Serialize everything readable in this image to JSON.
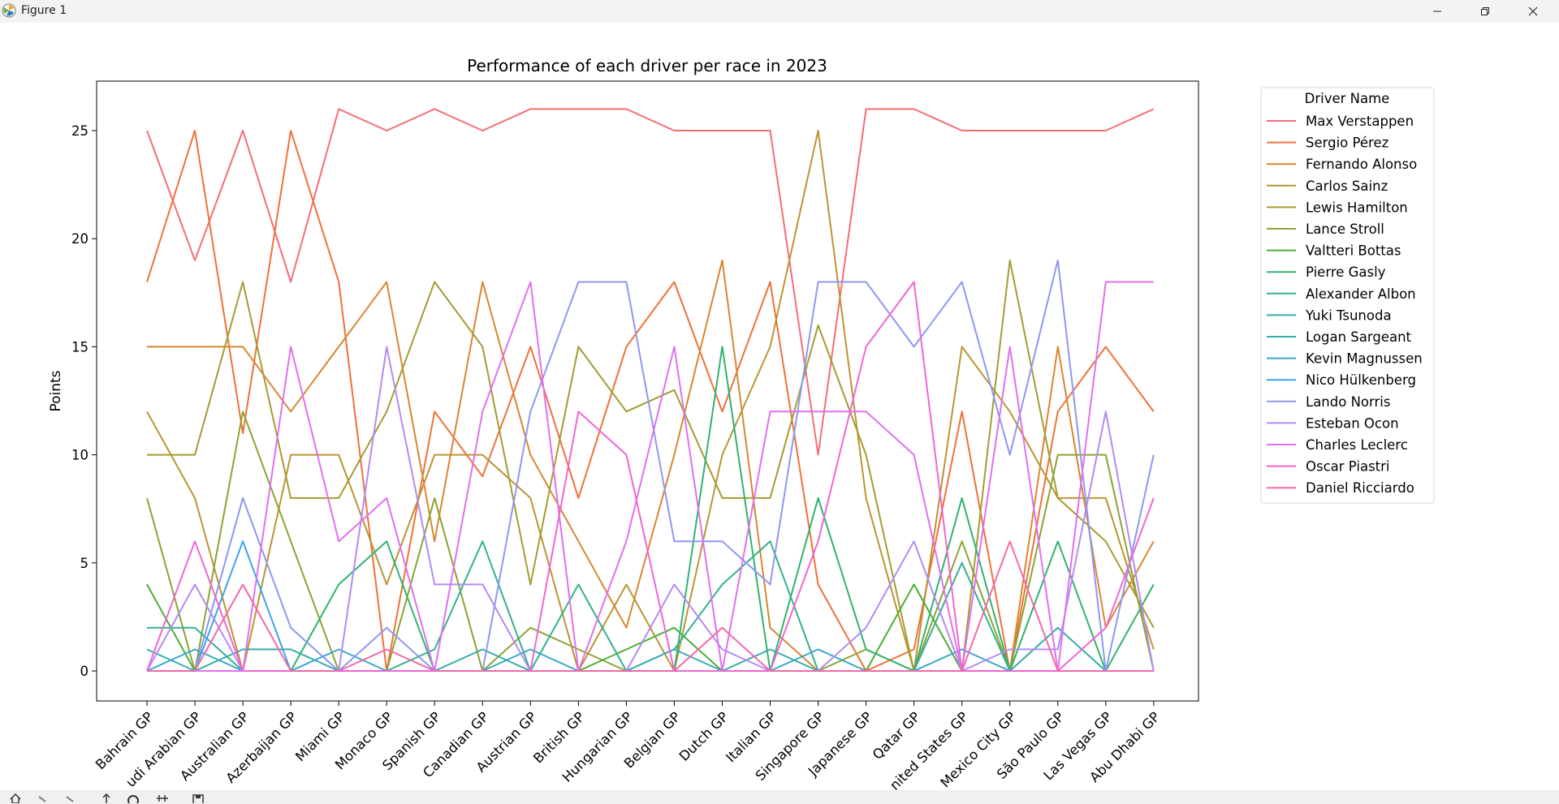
{
  "window": {
    "title": "Figure 1"
  },
  "toolbar": {
    "icons": [
      "home-icon",
      "back-icon",
      "forward-icon",
      "pan-icon",
      "zoom-icon",
      "configure-icon",
      "save-icon"
    ]
  },
  "chart_data": {
    "type": "line",
    "title": "Performance of each driver per race in 2023",
    "xlabel": "",
    "ylabel": "Points",
    "ylim": [
      -1.3,
      27.4
    ],
    "yticks": [
      0,
      5,
      10,
      15,
      20,
      25
    ],
    "grid": false,
    "legend": {
      "title": "Driver Name",
      "placement": "right-outside"
    },
    "categories": [
      "Bahrain GP",
      "Saudi Arabian GP",
      "Australian GP",
      "Azerbaijan GP",
      "Miami GP",
      "Monaco GP",
      "Spanish GP",
      "Canadian GP",
      "Austrian GP",
      "British GP",
      "Hungarian GP",
      "Belgian GP",
      "Dutch GP",
      "Italian GP",
      "Singapore GP",
      "Japanese GP",
      "Qatar GP",
      "United States GP",
      "Mexico City GP",
      "São Paulo GP",
      "Las Vegas GP",
      "Abu Dhabi GP"
    ],
    "tick_labels": [
      "Bahrain GP",
      "udi Arabian GP",
      "Australian GP",
      "Azerbaijan GP",
      "Miami GP",
      "Monaco GP",
      "Spanish GP",
      "Canadian GP",
      "Austrian GP",
      "British GP",
      "Hungarian GP",
      "Belgian GP",
      "Dutch GP",
      "Italian GP",
      "Singapore GP",
      "Japanese GP",
      "Qatar GP",
      "nited States GP",
      "Mexico City GP",
      "São Paulo GP",
      "Las Vegas GP",
      "Abu Dhabi GP"
    ],
    "series": [
      {
        "name": "Max Verstappen",
        "color": "#f66b77",
        "values": [
          25,
          19,
          25,
          18,
          26,
          25,
          26,
          25,
          26,
          26,
          26,
          25,
          25,
          25,
          10,
          26,
          26,
          25,
          25,
          25,
          25,
          26
        ]
      },
      {
        "name": "Sergio Pérez",
        "color": "#f07039",
        "values": [
          18,
          25,
          11,
          25,
          18,
          0,
          12,
          9,
          15,
          8,
          15,
          18,
          12,
          18,
          4,
          0,
          1,
          12,
          0,
          12,
          15,
          12
        ]
      },
      {
        "name": "Fernando Alonso",
        "color": "#d98631",
        "values": [
          15,
          15,
          15,
          12,
          15,
          18,
          6,
          18,
          10,
          6,
          2,
          10,
          19,
          2,
          0,
          0,
          0,
          0,
          0,
          15,
          2,
          6
        ]
      },
      {
        "name": "Carlos Sainz",
        "color": "#bc9433",
        "values": [
          12,
          8,
          0,
          10,
          10,
          4,
          10,
          10,
          8,
          0,
          4,
          0,
          10,
          15,
          25,
          8,
          0,
          15,
          12,
          8,
          8,
          1
        ]
      },
      {
        "name": "Lewis Hamilton",
        "color": "#a49c33",
        "values": [
          10,
          10,
          18,
          8,
          8,
          12,
          18,
          15,
          4,
          15,
          12,
          13,
          8,
          8,
          16,
          10,
          0,
          0,
          19,
          8,
          6,
          2
        ]
      },
      {
        "name": "Lance Stroll",
        "color": "#8ba433",
        "values": [
          8,
          0,
          12,
          6,
          0,
          0,
          8,
          0,
          2,
          1,
          0,
          0,
          0,
          0,
          0,
          1,
          0,
          6,
          0,
          10,
          10,
          0
        ]
      },
      {
        "name": "Valtteri Bottas",
        "color": "#4cae36",
        "values": [
          4,
          0,
          0,
          0,
          0,
          0,
          0,
          0,
          0,
          0,
          1,
          2,
          0,
          0,
          0,
          0,
          4,
          0,
          0,
          0,
          0,
          0
        ]
      },
      {
        "name": "Pierre Gasly",
        "color": "#31b26e",
        "values": [
          0,
          0,
          0,
          0,
          4,
          6,
          0,
          0,
          0,
          0,
          0,
          0,
          15,
          0,
          8,
          1,
          0,
          8,
          0,
          6,
          0,
          4
        ]
      },
      {
        "name": "Alexander Albon",
        "color": "#33b091",
        "values": [
          2,
          2,
          0,
          0,
          0,
          0,
          1,
          6,
          0,
          4,
          0,
          1,
          4,
          6,
          0,
          0,
          0,
          5,
          0,
          0,
          0,
          0
        ]
      },
      {
        "name": "Yuki Tsunoda",
        "color": "#35aca7",
        "values": [
          0,
          0,
          1,
          1,
          0,
          0,
          0,
          1,
          0,
          0,
          0,
          0,
          0,
          1,
          0,
          0,
          0,
          0,
          0,
          2,
          0,
          0
        ]
      },
      {
        "name": "Logan Sargeant",
        "color": "#37abb5",
        "values": [
          1,
          0,
          0,
          0,
          0,
          0,
          0,
          0,
          0,
          0,
          0,
          1,
          0,
          0,
          0,
          0,
          0,
          0,
          0,
          0,
          0,
          0
        ]
      },
      {
        "name": "Kevin Magnussen",
        "color": "#36a8c7",
        "values": [
          0,
          1,
          0,
          0,
          1,
          0,
          0,
          0,
          1,
          0,
          0,
          0,
          0,
          0,
          1,
          0,
          0,
          1,
          0,
          0,
          0,
          0
        ]
      },
      {
        "name": "Nico Hülkenberg",
        "color": "#3ba3ec",
        "values": [
          0,
          0,
          6,
          0,
          0,
          0,
          0,
          0,
          0,
          0,
          0,
          0,
          0,
          0,
          0,
          0,
          0,
          0,
          0,
          0,
          0,
          0
        ]
      },
      {
        "name": "Lando Norris",
        "color": "#8e97f2",
        "values": [
          0,
          0,
          8,
          2,
          0,
          2,
          0,
          0,
          12,
          18,
          18,
          6,
          6,
          4,
          18,
          18,
          15,
          18,
          10,
          19,
          0,
          10
        ]
      },
      {
        "name": "Esteban Ocon",
        "color": "#b48af3",
        "values": [
          0,
          4,
          0,
          0,
          0,
          15,
          4,
          4,
          0,
          0,
          0,
          4,
          1,
          0,
          0,
          2,
          6,
          0,
          1,
          1,
          12,
          0
        ]
      },
      {
        "name": "Charles Leclerc",
        "color": "#e16ff0",
        "values": [
          0,
          0,
          0,
          15,
          6,
          8,
          0,
          12,
          18,
          0,
          6,
          15,
          0,
          12,
          12,
          12,
          10,
          0,
          15,
          0,
          18,
          18
        ]
      },
      {
        "name": "Oscar Piastri",
        "color": "#f265d3",
        "values": [
          0,
          6,
          0,
          0,
          0,
          0,
          0,
          0,
          0,
          12,
          10,
          0,
          0,
          0,
          6,
          15,
          18,
          0,
          0,
          0,
          2,
          8
        ]
      },
      {
        "name": "Daniel Ricciardo",
        "color": "#f667a9",
        "values": [
          0,
          0,
          4,
          0,
          0,
          1,
          0,
          0,
          0,
          0,
          0,
          0,
          2,
          0,
          0,
          0,
          0,
          0,
          6,
          0,
          0,
          0
        ]
      }
    ]
  }
}
